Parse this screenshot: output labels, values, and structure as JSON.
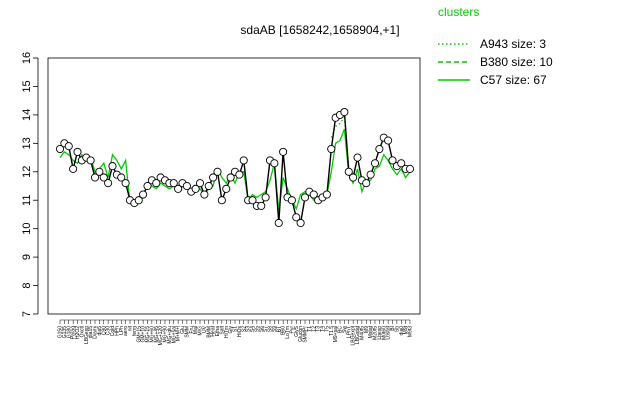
{
  "chart_data": {
    "type": "line",
    "title": "sdaAB [1658242,1658904,+1]",
    "xlabel": "",
    "ylabel": "",
    "ylim": [
      7,
      16
    ],
    "yticks": [
      7,
      8,
      9,
      10,
      11,
      12,
      13,
      14,
      15,
      16
    ],
    "grid": false,
    "legend": {
      "title": "clusters",
      "placement": "top-right",
      "entries": [
        {
          "label": "A943 size: 3",
          "style": "dotted",
          "color": "#00cc00"
        },
        {
          "label": "B380 size: 10",
          "style": "dashed",
          "color": "#00cc00"
        },
        {
          "label": "C57 size: 67",
          "style": "solid",
          "color": "#00cc00"
        }
      ]
    },
    "x_labels": [
      "G150",
      "G135",
      "G180",
      "Paraq",
      "H2O2",
      "Oxctl",
      "LBGexp",
      "dia15",
      "Diami",
      "dia5",
      "C90",
      "C30",
      "Cold",
      "HPh",
      "LPh",
      "aero",
      "nit",
      "ferm",
      "GM+15",
      "GM+10",
      "MG+15",
      "MG+60",
      "MG+45",
      "MG+120",
      "MG+90",
      "MG+glu",
      "MG+sal",
      "M+M+l",
      "Glu",
      "SMM",
      "Fru",
      "Mal",
      "M/G",
      "UV",
      "BMM",
      "Heat",
      "Etha",
      "Salt",
      "HiTm",
      "Gly",
      "S1",
      "HiOs",
      "S2",
      "S3",
      "S4",
      "S5",
      "S6",
      "S7",
      "S8",
      "S9",
      "BT",
      "B60",
      "LoTm",
      "Pyr",
      "GlyS",
      "Glucon",
      "SMMPr",
      "T1",
      "T2",
      "T3",
      "T4",
      "T5",
      "T1.5",
      "M9+sal",
      "BC",
      "Sw",
      "LPhT",
      "LBGexpt",
      "LBGstat",
      "M40t5",
      "M9",
      "Mstat",
      "M20t5",
      "Lbexp",
      "M0t60",
      "Lbstat",
      "BI",
      "Sb",
      "dia0",
      "M9t",
      "M9t3"
    ],
    "series": [
      {
        "name": "C57 size: 67",
        "style": "solid",
        "values": [
          12.5,
          12.7,
          12.6,
          12.4,
          12.3,
          12.6,
          12.4,
          12.5,
          12.0,
          12.1,
          12.3,
          11.8,
          12.6,
          12.4,
          12.1,
          12.4,
          10.9,
          10.8,
          10.9,
          11.1,
          11.6,
          11.5,
          11.4,
          11.6,
          11.5,
          11.4,
          11.5,
          11.4,
          11.5,
          11.5,
          11.3,
          11.3,
          11.4,
          11.2,
          11.4,
          11.5,
          12.1,
          11.8,
          11.6,
          11.9,
          11.6,
          12.0,
          12.0,
          11.0,
          11.2,
          11.1,
          11.2,
          11.3,
          11.7,
          12.3,
          10.6,
          11.8,
          11.4,
          11.0,
          10.7,
          11.2,
          11.3,
          11.2,
          11.0,
          11.1,
          11.2,
          11.2,
          12.0,
          13.0,
          13.1,
          13.5,
          11.9,
          11.6,
          12.1,
          11.3,
          11.7,
          11.7,
          12.1,
          12.2,
          12.6,
          12.4,
          12.1,
          11.9,
          12.1,
          11.8,
          12.0
        ]
      },
      {
        "name": "B380 size: 10",
        "style": "dashed",
        "values": [
          null,
          null,
          null,
          null,
          null,
          null,
          12.6,
          null,
          null,
          null,
          null,
          null,
          13.0,
          null,
          null,
          null,
          null,
          null,
          null,
          null,
          null,
          null,
          null,
          null,
          null,
          null,
          null,
          null,
          null,
          null,
          null,
          null,
          null,
          null,
          null,
          null,
          null,
          null,
          null,
          null,
          null,
          null,
          null,
          null,
          null,
          null,
          null,
          null,
          null,
          12.9,
          null,
          null,
          null,
          null,
          null,
          null,
          null,
          null,
          null,
          null,
          null,
          null,
          12.8,
          null,
          null,
          13.8,
          null,
          12.9,
          null,
          null,
          null,
          null,
          null,
          13.7,
          null,
          null,
          12.9,
          null,
          null,
          null,
          null
        ]
      },
      {
        "name": "A943 size: 3",
        "style": "dotted",
        "values": [
          null,
          null,
          null,
          null,
          null,
          null,
          null,
          null,
          null,
          null,
          null,
          null,
          null,
          null,
          null,
          null,
          null,
          null,
          null,
          null,
          null,
          null,
          null,
          null,
          null,
          null,
          null,
          null,
          null,
          null,
          null,
          null,
          null,
          null,
          null,
          null,
          null,
          null,
          null,
          null,
          null,
          null,
          null,
          null,
          null,
          null,
          null,
          null,
          null,
          null,
          null,
          null,
          null,
          null,
          null,
          null,
          null,
          null,
          null,
          null,
          null,
          null,
          13.2,
          13.6,
          13.7,
          13.9,
          12.2,
          null,
          null,
          null,
          null,
          null,
          null,
          null,
          null,
          13.4,
          null,
          null,
          null,
          null,
          null
        ]
      },
      {
        "name": "sdaAB",
        "style": "points",
        "values": [
          12.8,
          13.0,
          12.9,
          12.1,
          12.7,
          12.4,
          12.5,
          12.4,
          11.8,
          12.0,
          11.8,
          11.6,
          12.2,
          11.9,
          11.8,
          11.6,
          11.0,
          10.9,
          11.0,
          11.2,
          11.5,
          11.7,
          11.6,
          11.8,
          11.7,
          11.6,
          11.6,
          11.4,
          11.6,
          11.5,
          11.3,
          11.4,
          11.6,
          11.2,
          11.5,
          11.8,
          12.0,
          11.0,
          11.4,
          11.8,
          12.0,
          11.9,
          12.4,
          11.0,
          11.0,
          10.8,
          10.8,
          11.1,
          12.4,
          12.3,
          10.2,
          12.7,
          11.1,
          11.0,
          10.4,
          10.2,
          11.1,
          11.3,
          11.2,
          11.0,
          11.1,
          11.2,
          12.8,
          13.9,
          14.0,
          14.1,
          12.0,
          11.8,
          12.5,
          11.7,
          11.6,
          11.9,
          12.3,
          12.8,
          13.2,
          13.1,
          12.4,
          12.2,
          12.3,
          12.1,
          12.1
        ]
      }
    ]
  }
}
